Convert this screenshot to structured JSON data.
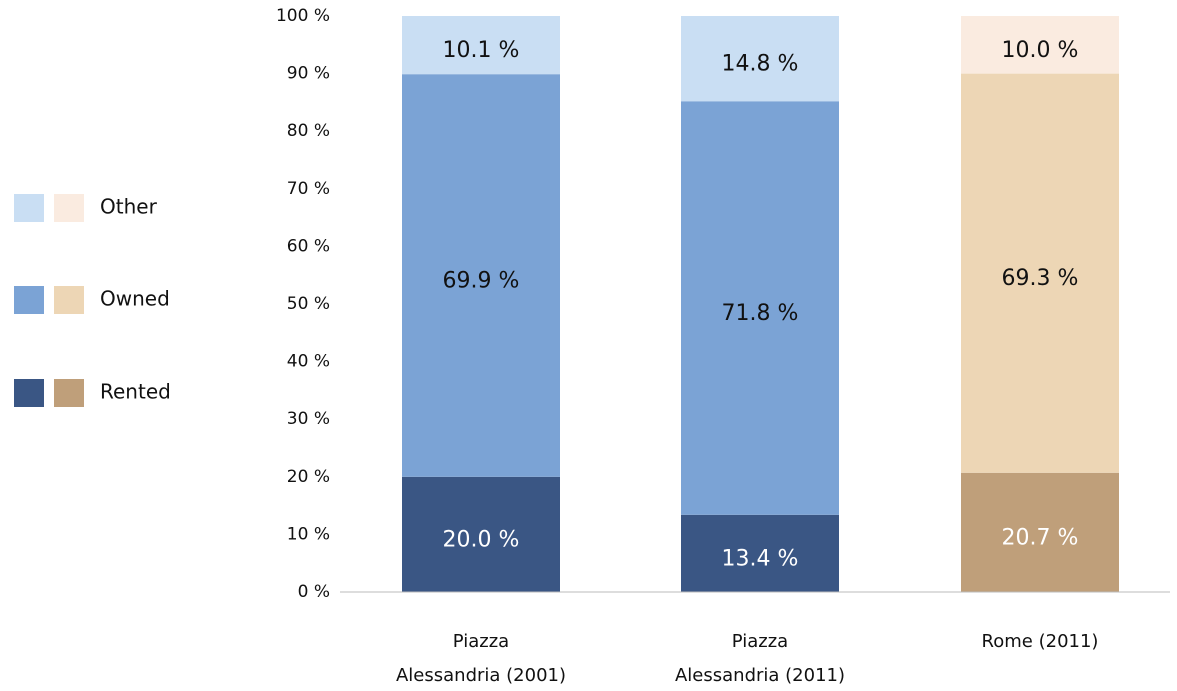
{
  "chart_data": {
    "type": "stacked_bar",
    "categories": [
      "Piazza Alessandria (2001)",
      "Piazza Alessandria (2011)",
      "Rome (2011)"
    ],
    "series": [
      {
        "name": "Rented",
        "color": [
          "#3a5684",
          "#3a5684",
          "#bf9f7a"
        ],
        "values": [
          20.0,
          13.4,
          20.7
        ],
        "value_labels": [
          "20.0 %",
          "13.4 %",
          "20.7 %"
        ]
      },
      {
        "name": "Owned",
        "color": [
          "#7ba3d5",
          "#7ba3d5",
          "#edd6b5"
        ],
        "values": [
          69.9,
          71.8,
          69.3
        ],
        "value_labels": [
          "69.9 %",
          "71.8 %",
          "69.3 %"
        ]
      },
      {
        "name": "Other",
        "color": [
          "#c9def3",
          "#c9def3",
          "#faebe0"
        ],
        "values": [
          10.1,
          14.8,
          10.0
        ],
        "value_labels": [
          "10.1 %",
          "14.8 %",
          "10.0 %"
        ]
      }
    ],
    "ylim": [
      0,
      100
    ],
    "yticks": [
      {
        "value": 0,
        "label": "0 %"
      },
      {
        "value": 10,
        "label": "10 %"
      },
      {
        "value": 20,
        "label": "20 %"
      },
      {
        "value": 30,
        "label": "30 %"
      },
      {
        "value": 40,
        "label": "40 %"
      },
      {
        "value": 50,
        "label": "50 %"
      },
      {
        "value": 60,
        "label": "60 %"
      },
      {
        "value": 70,
        "label": "70 %"
      },
      {
        "value": 80,
        "label": "80 %"
      },
      {
        "value": 90,
        "label": "90 %"
      },
      {
        "value": 100,
        "label": "100 %"
      }
    ],
    "legend": "left"
  }
}
